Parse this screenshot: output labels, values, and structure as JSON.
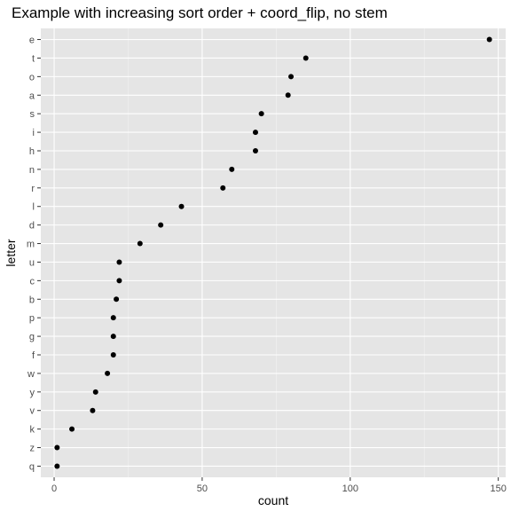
{
  "chart_data": {
    "type": "scatter",
    "title": "Example with increasing sort order + coord_flip, no stem",
    "xlabel": "count",
    "ylabel": "letter",
    "categories": [
      "q",
      "z",
      "k",
      "v",
      "y",
      "w",
      "f",
      "g",
      "p",
      "b",
      "c",
      "u",
      "m",
      "d",
      "l",
      "r",
      "n",
      "h",
      "i",
      "s",
      "a",
      "o",
      "t",
      "e"
    ],
    "values": [
      1,
      1,
      6,
      13,
      14,
      18,
      20,
      20,
      20,
      21,
      22,
      22,
      29,
      36,
      43,
      57,
      60,
      68,
      68,
      70,
      79,
      80,
      85,
      147
    ],
    "xlim": [
      -4.5,
      152.5
    ],
    "xticks": [
      0,
      50,
      100,
      150
    ],
    "xtick_labels": [
      "0",
      "50",
      "100",
      "150"
    ],
    "grid": true,
    "colors": {
      "panel_background": "#e5e5e5",
      "grid_major": "#ffffff",
      "grid_minor": "#f2f2f2",
      "point": "#000000",
      "tick_label": "#4d4d4d",
      "tick_mark": "#333333"
    }
  }
}
